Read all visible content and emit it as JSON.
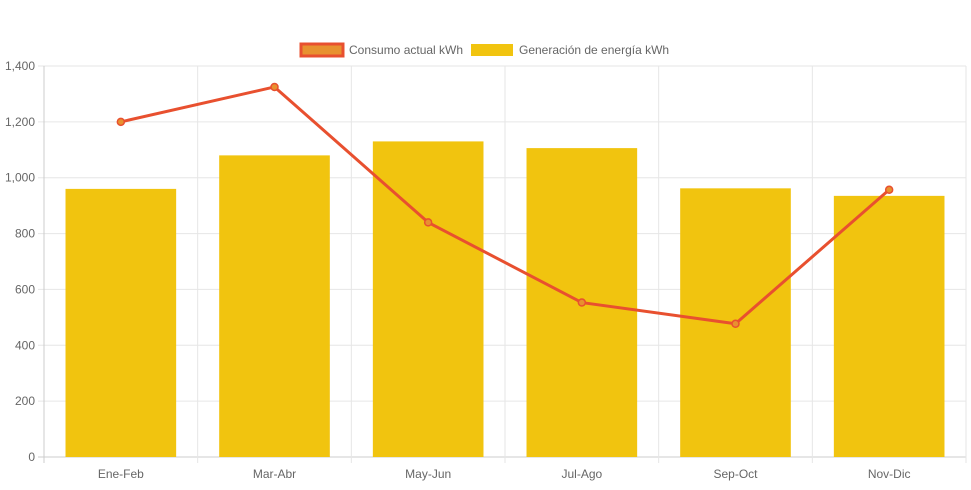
{
  "chart_data": {
    "type": "bar",
    "categories": [
      "Ene-Feb",
      "Mar-Abr",
      "May-Jun",
      "Jul-Ago",
      "Sep-Oct",
      "Nov-Dic"
    ],
    "series": [
      {
        "name": "Consumo actual kWh",
        "type": "line",
        "values": [
          1200,
          1325,
          840,
          553,
          477,
          957
        ],
        "color": "#e8502f",
        "fill": "#e8912f"
      },
      {
        "name": "Generación de energía kWh",
        "type": "bar",
        "values": [
          960,
          1080,
          1130,
          1106,
          962,
          935
        ],
        "color": "#f1c40f"
      }
    ],
    "ylim": [
      0,
      1400
    ],
    "yticks": [
      "0",
      "200",
      "400",
      "600",
      "800",
      "1,000",
      "1,200",
      "1,400"
    ],
    "ytick_values": [
      0,
      200,
      400,
      600,
      800,
      1000,
      1200,
      1400
    ],
    "grid": true,
    "legend": "top-center"
  }
}
